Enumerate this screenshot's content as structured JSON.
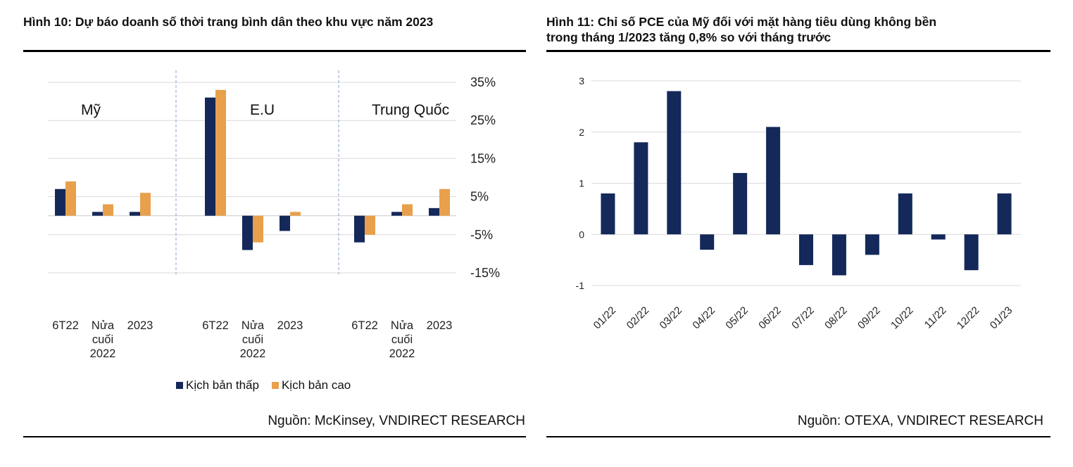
{
  "figure10": {
    "title": "Hình 10: Dự báo doanh số thời trang bình dân theo khu vực năm 2023",
    "source": "Nguồn: McKinsey, VNDIRECT RESEARCH",
    "colors": {
      "low": "#14295a",
      "high": "#e8a04c",
      "grid": "#d9d9d9",
      "divider": "#8ea2cf"
    },
    "legend": [
      "Kịch bản thấp",
      "Kịch bản cao"
    ],
    "chart_data": {
      "type": "bar",
      "ylim": [
        -15,
        35
      ],
      "yticks": [
        35,
        25,
        15,
        5,
        -5,
        -15
      ],
      "ytick_labels": [
        "35%",
        "25%",
        "15%",
        "5%",
        "-5%",
        "-15%"
      ],
      "groups": [
        {
          "region": "Mỹ",
          "categories": [
            "6T22",
            "Nửa cuối 2022",
            "2023"
          ],
          "low": [
            7,
            1,
            1
          ],
          "high": [
            9,
            3,
            6
          ]
        },
        {
          "region": "E.U",
          "categories": [
            "6T22",
            "Nửa cuối 2022",
            "2023"
          ],
          "low": [
            31,
            -9,
            -4
          ],
          "high": [
            33,
            -7,
            1
          ]
        },
        {
          "region": "Trung Quốc",
          "categories": [
            "6T22",
            "Nửa cuối 2022",
            "2023"
          ],
          "low": [
            -7,
            1,
            2
          ],
          "high": [
            -5,
            3,
            7
          ]
        }
      ],
      "series": [
        {
          "name": "Kịch bản thấp",
          "key": "low"
        },
        {
          "name": "Kịch bản cao",
          "key": "high"
        }
      ]
    }
  },
  "figure11": {
    "title_line1": "Hình 11: Chỉ số PCE của Mỹ đối với mặt hàng tiêu dùng không bền",
    "title_line2": "trong tháng 1/2023 tăng 0,8% so với tháng trước",
    "source": "Nguồn: OTEXA, VNDIRECT RESEARCH",
    "colors": {
      "bar": "#14295a",
      "grid": "#d9d9d9"
    },
    "chart_data": {
      "type": "bar",
      "categories": [
        "01/22",
        "02/22",
        "03/22",
        "04/22",
        "05/22",
        "06/22",
        "07/22",
        "08/22",
        "09/22",
        "10/22",
        "11/22",
        "12/22",
        "01/23"
      ],
      "values": [
        0.8,
        1.8,
        2.8,
        -0.3,
        1.2,
        2.1,
        -0.6,
        -0.8,
        -0.4,
        0.8,
        -0.1,
        -0.7,
        0.8
      ],
      "ylim": [
        -1,
        3
      ],
      "yticks": [
        3,
        2,
        1,
        0,
        -1
      ],
      "ytick_labels": [
        "3",
        "2",
        "1",
        "0",
        "-1"
      ]
    }
  }
}
